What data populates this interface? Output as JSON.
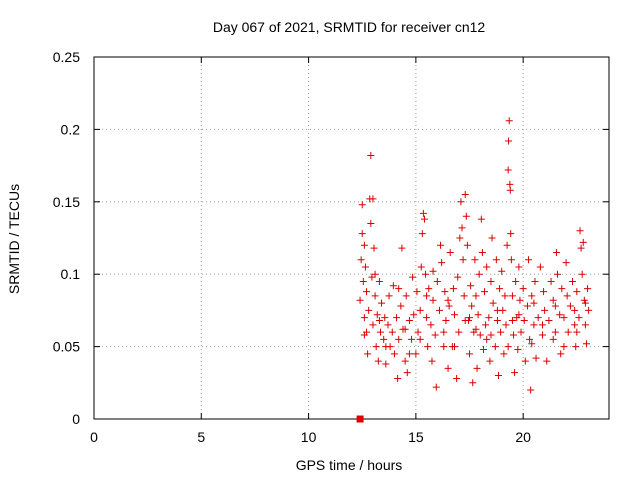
{
  "chart_data": {
    "type": "scatter",
    "title": "Day 067 of 2021, SRMTID for receiver cn12",
    "xlabel": "GPS time / hours",
    "ylabel": "SRMTID / TECUs",
    "xlim": [
      0,
      24
    ],
    "ylim": [
      0,
      0.25
    ],
    "xticks": [
      0,
      5,
      10,
      15,
      20
    ],
    "yticks": [
      0,
      0.05,
      0.1,
      0.15,
      0.2,
      0.25
    ],
    "xtick_labels": [
      "0",
      "5",
      "10",
      "15",
      "20"
    ],
    "ytick_labels": [
      "0",
      "0.05",
      "0.1",
      "0.15",
      "0.2",
      "0.25"
    ],
    "grid": true,
    "marker_color": "#dd0000",
    "marker_shape": "plus",
    "zero_marker": {
      "x": 12.4,
      "y": 0,
      "shape": "square"
    },
    "series": [
      {
        "name": "SRMTID",
        "points": [
          [
            12.4,
            0.082
          ],
          [
            12.45,
            0.11
          ],
          [
            12.5,
            0.128
          ],
          [
            12.5,
            0.148
          ],
          [
            12.55,
            0.095
          ],
          [
            12.6,
            0.07
          ],
          [
            12.6,
            0.12
          ],
          [
            12.65,
            0.105
          ],
          [
            12.7,
            0.06
          ],
          [
            12.7,
            0.088
          ],
          [
            12.75,
            0.045
          ],
          [
            12.8,
            0.075
          ],
          [
            12.85,
            0.152
          ],
          [
            12.9,
            0.182
          ],
          [
            12.9,
            0.135
          ],
          [
            12.95,
            0.098
          ],
          [
            13.0,
            0.065
          ],
          [
            13.0,
            0.152
          ],
          [
            13.05,
            0.118
          ],
          [
            13.1,
            0.085
          ],
          [
            13.15,
            0.05
          ],
          [
            13.2,
            0.072
          ],
          [
            13.25,
            0.04
          ],
          [
            13.3,
            0.095
          ],
          [
            13.35,
            0.06
          ],
          [
            13.4,
            0.08
          ],
          [
            13.5,
            0.055
          ],
          [
            13.55,
            0.07
          ],
          [
            13.6,
            0.038
          ],
          [
            13.7,
            0.065
          ],
          [
            13.75,
            0.085
          ],
          [
            13.8,
            0.05
          ],
          [
            13.9,
            0.06
          ],
          [
            13.95,
            0.092
          ],
          [
            14.0,
            0.045
          ],
          [
            14.1,
            0.07
          ],
          [
            14.15,
            0.028
          ],
          [
            14.2,
            0.055
          ],
          [
            14.3,
            0.078
          ],
          [
            14.35,
            0.118
          ],
          [
            14.4,
            0.062
          ],
          [
            14.5,
            0.04
          ],
          [
            14.55,
            0.085
          ],
          [
            14.6,
            0.032
          ],
          [
            14.7,
            0.068
          ],
          [
            14.8,
            0.055
          ],
          [
            14.85,
            0.098
          ],
          [
            14.9,
            0.072
          ],
          [
            15.0,
            0.045
          ],
          [
            15.05,
            0.088
          ],
          [
            15.1,
            0.06
          ],
          [
            15.2,
            0.075
          ],
          [
            15.25,
            0.105
          ],
          [
            15.3,
            0.128
          ],
          [
            15.35,
            0.142
          ],
          [
            15.4,
            0.138
          ],
          [
            15.45,
            0.1
          ],
          [
            15.5,
            0.07
          ],
          [
            15.55,
            0.05
          ],
          [
            15.6,
            0.09
          ],
          [
            15.7,
            0.065
          ],
          [
            15.75,
            0.04
          ],
          [
            15.8,
            0.082
          ],
          [
            15.9,
            0.058
          ],
          [
            15.95,
            0.022
          ],
          [
            16.0,
            0.095
          ],
          [
            16.1,
            0.075
          ],
          [
            16.15,
            0.12
          ],
          [
            16.2,
            0.108
          ],
          [
            16.3,
            0.05
          ],
          [
            16.35,
            0.088
          ],
          [
            16.4,
            0.068
          ],
          [
            16.5,
            0.035
          ],
          [
            16.55,
            0.078
          ],
          [
            16.6,
            0.115
          ],
          [
            16.7,
            0.05
          ],
          [
            16.75,
            0.09
          ],
          [
            16.8,
            0.072
          ],
          [
            16.9,
            0.028
          ],
          [
            16.95,
            0.098
          ],
          [
            17.0,
            0.06
          ],
          [
            17.05,
            0.125
          ],
          [
            17.1,
            0.15
          ],
          [
            17.15,
            0.132
          ],
          [
            17.2,
            0.11
          ],
          [
            17.25,
            0.085
          ],
          [
            17.3,
            0.155
          ],
          [
            17.35,
            0.14
          ],
          [
            17.4,
            0.12
          ],
          [
            17.45,
            0.068
          ],
          [
            17.5,
            0.045
          ],
          [
            17.55,
            0.092
          ],
          [
            17.6,
            0.078
          ],
          [
            17.65,
            0.025
          ],
          [
            17.7,
            0.06
          ],
          [
            17.75,
            0.11
          ],
          [
            17.8,
            0.085
          ],
          [
            17.85,
            0.035
          ],
          [
            17.9,
            0.072
          ],
          [
            17.95,
            0.1
          ],
          [
            18.0,
            0.058
          ],
          [
            18.05,
            0.138
          ],
          [
            18.1,
            0.115
          ],
          [
            18.15,
            0.048
          ],
          [
            18.2,
            0.088
          ],
          [
            18.25,
            0.065
          ],
          [
            18.3,
            0.105
          ],
          [
            18.4,
            0.07
          ],
          [
            18.45,
            0.04
          ],
          [
            18.5,
            0.095
          ],
          [
            18.55,
            0.125
          ],
          [
            18.6,
            0.08
          ],
          [
            18.7,
            0.05
          ],
          [
            18.75,
            0.11
          ],
          [
            18.8,
            0.068
          ],
          [
            18.85,
            0.03
          ],
          [
            18.9,
            0.09
          ],
          [
            18.95,
            0.06
          ],
          [
            19.0,
            0.102
          ],
          [
            19.05,
            0.075
          ],
          [
            19.1,
            0.045
          ],
          [
            19.15,
            0.085
          ],
          [
            19.2,
            0.065
          ],
          [
            19.25,
            0.12
          ],
          [
            19.3,
            0.172
          ],
          [
            19.32,
            0.192
          ],
          [
            19.35,
            0.206
          ],
          [
            19.38,
            0.162
          ],
          [
            19.4,
            0.158
          ],
          [
            19.42,
            0.128
          ],
          [
            19.45,
            0.11
          ],
          [
            19.5,
            0.085
          ],
          [
            19.55,
            0.058
          ],
          [
            19.6,
            0.032
          ],
          [
            19.65,
            0.095
          ],
          [
            19.7,
            0.07
          ],
          [
            19.75,
            0.048
          ],
          [
            19.8,
            0.105
          ],
          [
            19.85,
            0.082
          ],
          [
            19.9,
            0.06
          ],
          [
            20.0,
            0.09
          ],
          [
            20.05,
            0.068
          ],
          [
            20.1,
            0.04
          ],
          [
            20.2,
            0.078
          ],
          [
            20.25,
            0.11
          ],
          [
            20.3,
            0.055
          ],
          [
            20.35,
            0.02
          ],
          [
            20.4,
            0.085
          ],
          [
            20.5,
            0.065
          ],
          [
            20.55,
            0.095
          ],
          [
            20.6,
            0.042
          ],
          [
            20.7,
            0.07
          ],
          [
            20.8,
            0.105
          ],
          [
            20.9,
            0.058
          ],
          [
            20.95,
            0.088
          ],
          [
            21.0,
            0.075
          ],
          [
            21.1,
            0.04
          ],
          [
            21.2,
            0.068
          ],
          [
            21.3,
            0.095
          ],
          [
            21.4,
            0.082
          ],
          [
            21.5,
            0.06
          ],
          [
            21.55,
            0.115
          ],
          [
            21.6,
            0.1
          ],
          [
            21.7,
            0.072
          ],
          [
            21.75,
            0.045
          ],
          [
            21.8,
            0.09
          ],
          [
            21.9,
            0.07
          ],
          [
            22.0,
            0.108
          ],
          [
            22.05,
            0.085
          ],
          [
            22.1,
            0.06
          ],
          [
            22.2,
            0.078
          ],
          [
            22.3,
            0.095
          ],
          [
            22.4,
            0.065
          ],
          [
            22.45,
            0.05
          ],
          [
            22.5,
            0.088
          ],
          [
            22.6,
            0.07
          ],
          [
            22.65,
            0.13
          ],
          [
            22.7,
            0.118
          ],
          [
            22.75,
            0.1
          ],
          [
            22.8,
            0.122
          ],
          [
            22.85,
            0.082
          ],
          [
            22.9,
            0.065
          ],
          [
            22.95,
            0.052
          ],
          [
            23.0,
            0.09
          ],
          [
            23.05,
            0.075
          ],
          [
            12.6,
            0.058
          ],
          [
            13.1,
            0.1
          ],
          [
            13.6,
            0.05
          ],
          [
            14.2,
            0.09
          ],
          [
            14.7,
            0.045
          ],
          [
            15.2,
            0.055
          ],
          [
            15.8,
            0.102
          ],
          [
            16.3,
            0.06
          ],
          [
            16.8,
            0.05
          ],
          [
            17.3,
            0.068
          ],
          [
            17.8,
            0.062
          ],
          [
            18.3,
            0.055
          ],
          [
            18.8,
            0.075
          ],
          [
            19.3,
            0.05
          ],
          [
            19.8,
            0.072
          ],
          [
            20.4,
            0.052
          ],
          [
            20.9,
            0.065
          ],
          [
            21.4,
            0.055
          ],
          [
            21.9,
            0.05
          ],
          [
            22.4,
            0.075
          ],
          [
            22.9,
            0.08
          ],
          [
            13.3,
            0.068
          ],
          [
            14.5,
            0.062
          ],
          [
            15.5,
            0.085
          ],
          [
            16.5,
            0.082
          ],
          [
            17.5,
            0.07
          ],
          [
            18.5,
            0.058
          ],
          [
            19.5,
            0.068
          ],
          [
            20.5,
            0.08
          ],
          [
            21.5,
            0.078
          ],
          [
            22.5,
            0.06
          ]
        ]
      }
    ]
  }
}
